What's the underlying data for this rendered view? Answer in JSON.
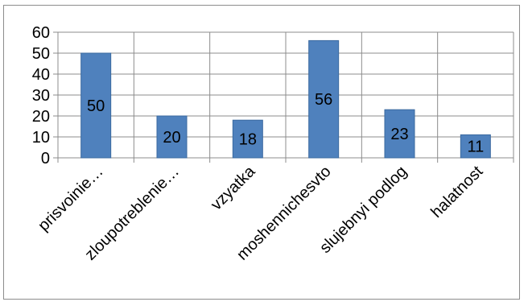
{
  "chart_data": {
    "type": "bar",
    "title": "",
    "xlabel": "",
    "ylabel": "",
    "categories": [
      "prisvoinie…",
      "zloupotreblenie…",
      "vzyatka",
      "moshennichesvto",
      "slujebnyi podlog",
      "halatnost"
    ],
    "values": [
      50,
      20,
      18,
      56,
      23,
      11
    ],
    "ylim": [
      0,
      60
    ],
    "yticks": [
      0,
      10,
      20,
      30,
      40,
      50,
      60
    ],
    "grid": true,
    "legend": "none",
    "data_labels": true,
    "colors": {
      "bar": "#4f81bd",
      "bar_edge": "#3b6aa0",
      "grid": "#8c8c8c",
      "axis": "#8c8c8c"
    }
  }
}
